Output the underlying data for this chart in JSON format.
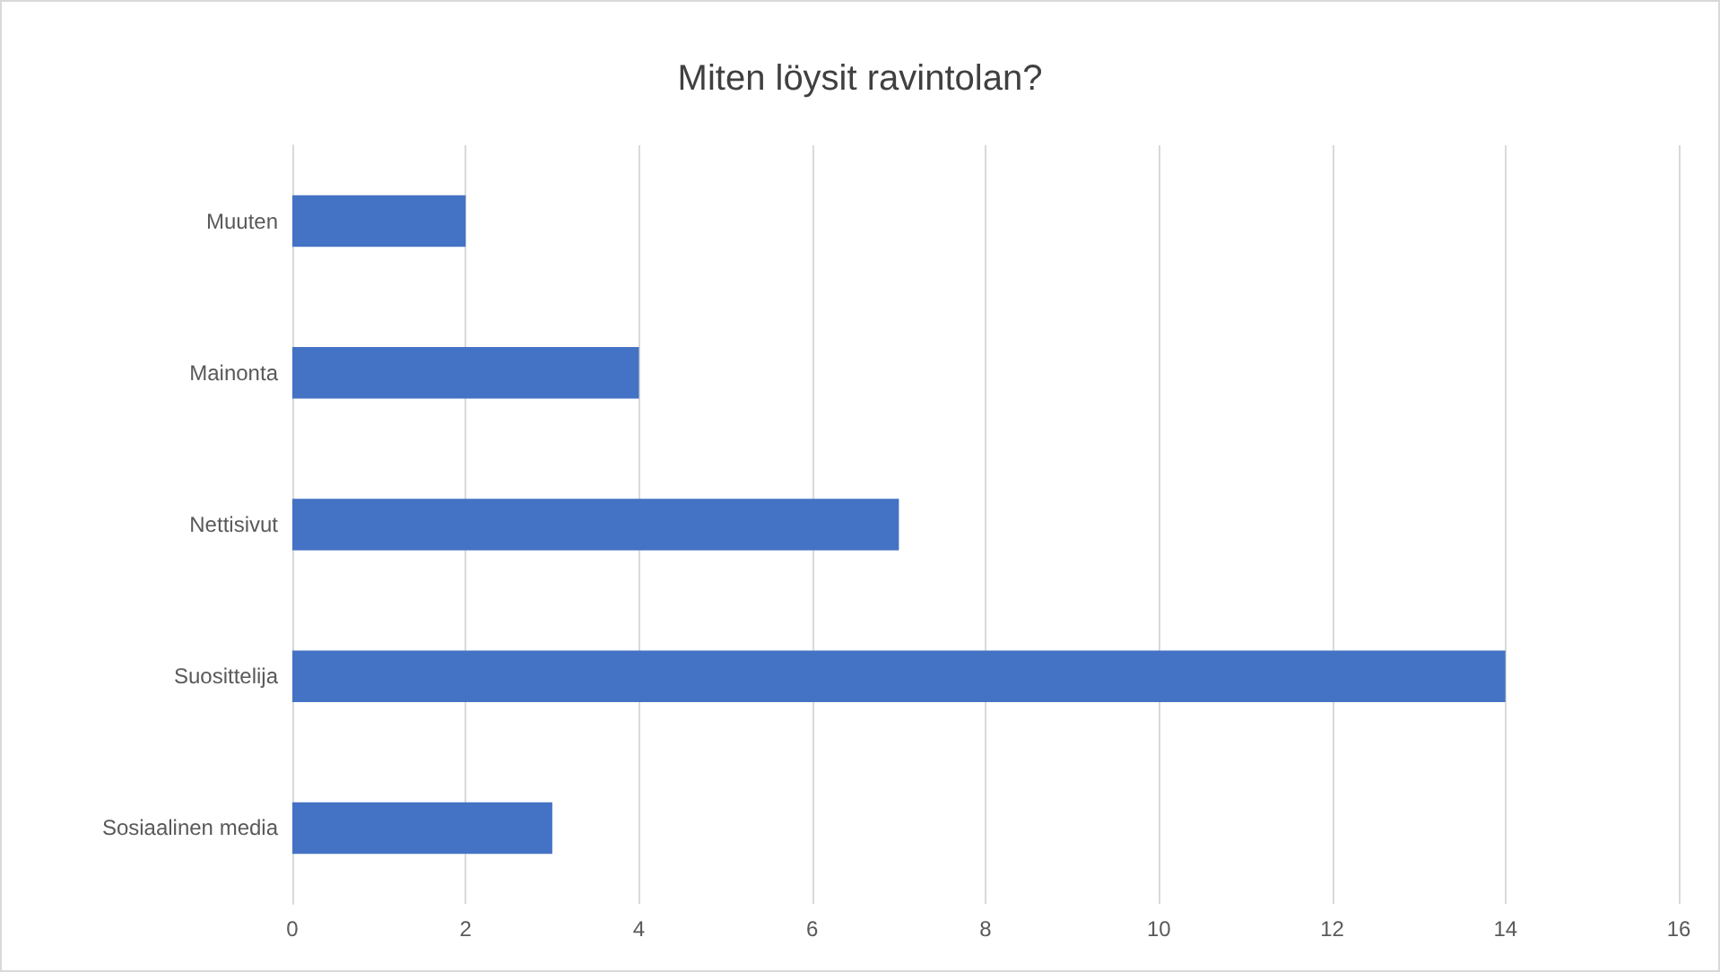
{
  "chart_data": {
    "type": "bar",
    "title": "Miten löysit ravintolan?",
    "orientation": "horizontal",
    "categories": [
      "Muuten",
      "Mainonta",
      "Nettisivut",
      "Suosittelija",
      "Sosiaalinen media"
    ],
    "values": [
      2,
      4,
      7,
      14,
      3
    ],
    "color": "#4472c4",
    "xlim": [
      0,
      16
    ],
    "xticks": [
      0,
      2,
      4,
      6,
      8,
      10,
      12,
      14,
      16
    ],
    "grid": "x"
  }
}
